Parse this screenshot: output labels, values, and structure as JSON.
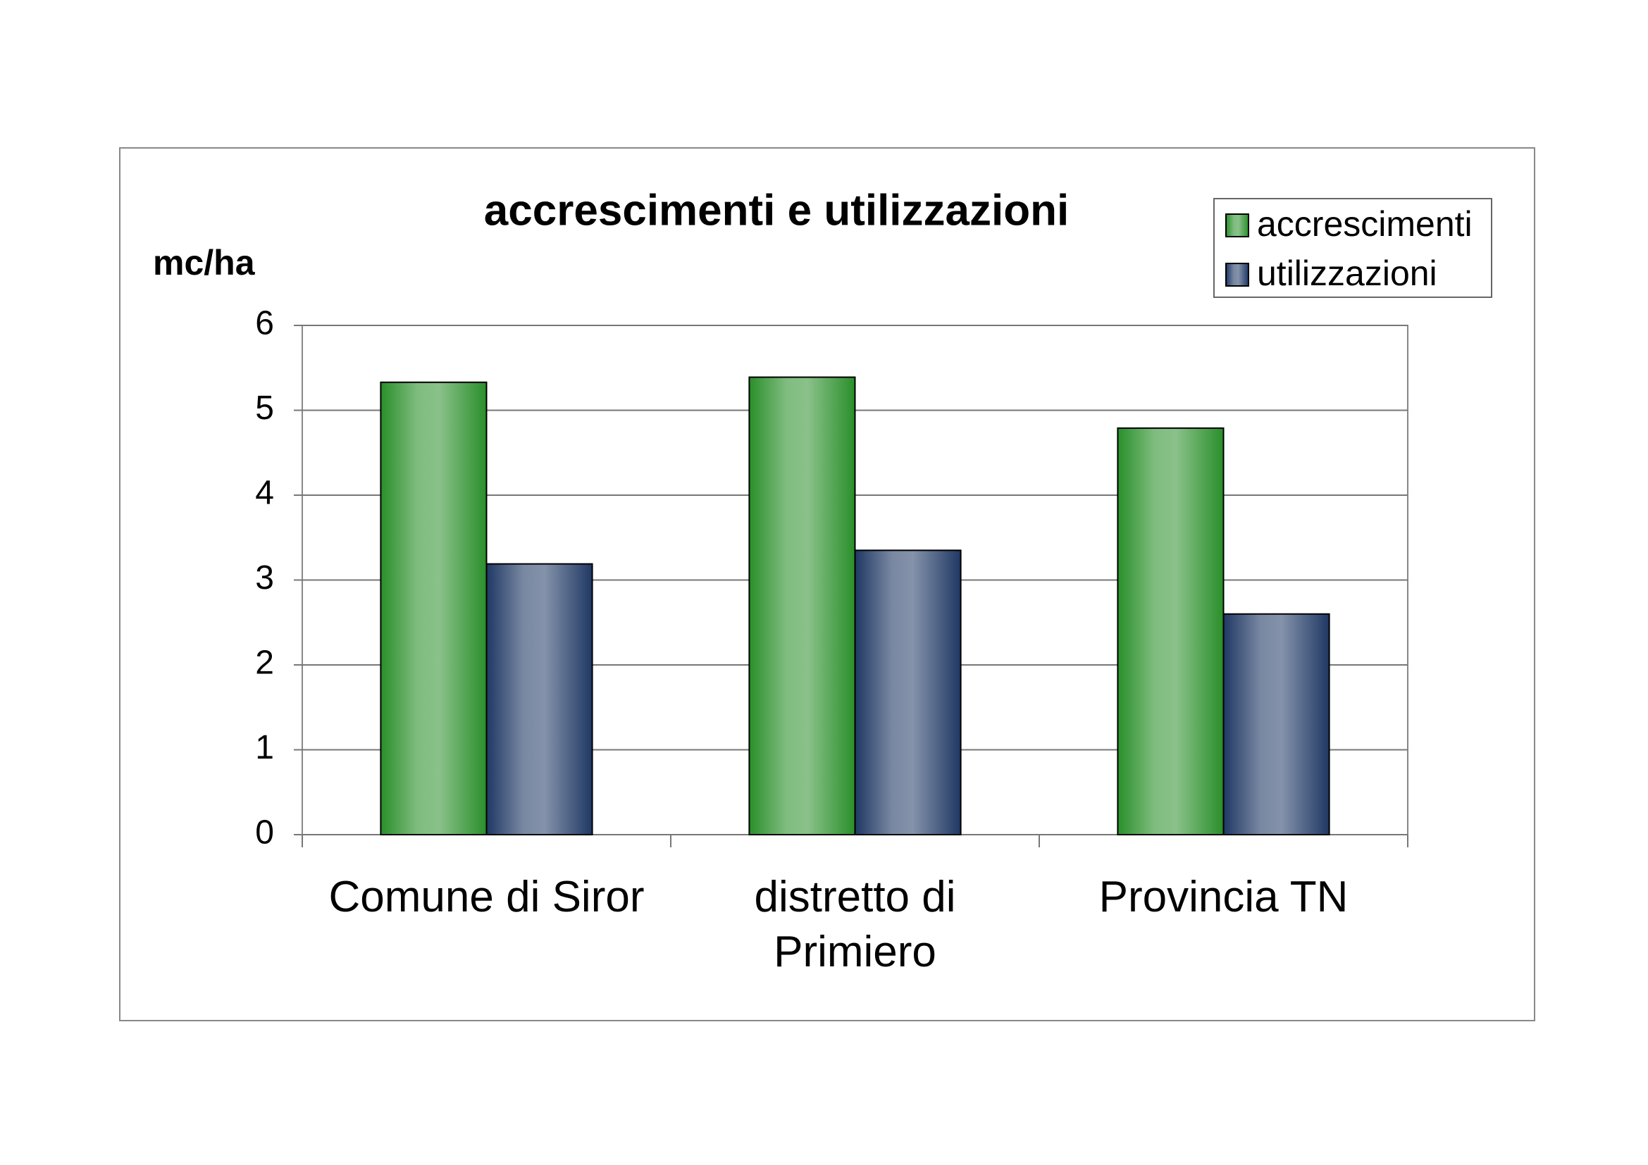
{
  "chart_data": {
    "type": "bar",
    "title": "accrescimenti e utilizzazioni",
    "y_label": "mc/ha",
    "categories": [
      "Comune di Siror",
      "distretto di Primiero",
      "Provincia TN"
    ],
    "series": [
      {
        "name": "accrescimenti",
        "color": "#2a8f2a",
        "values": [
          5.33,
          5.39,
          4.79
        ]
      },
      {
        "name": "utilizzazioni",
        "color": "#1f3864",
        "values": [
          3.19,
          3.35,
          2.6
        ]
      }
    ],
    "ylim": [
      0,
      6
    ],
    "yticks": [
      0,
      1,
      2,
      3,
      4,
      5,
      6
    ],
    "grid": true,
    "legend": "top-right"
  }
}
